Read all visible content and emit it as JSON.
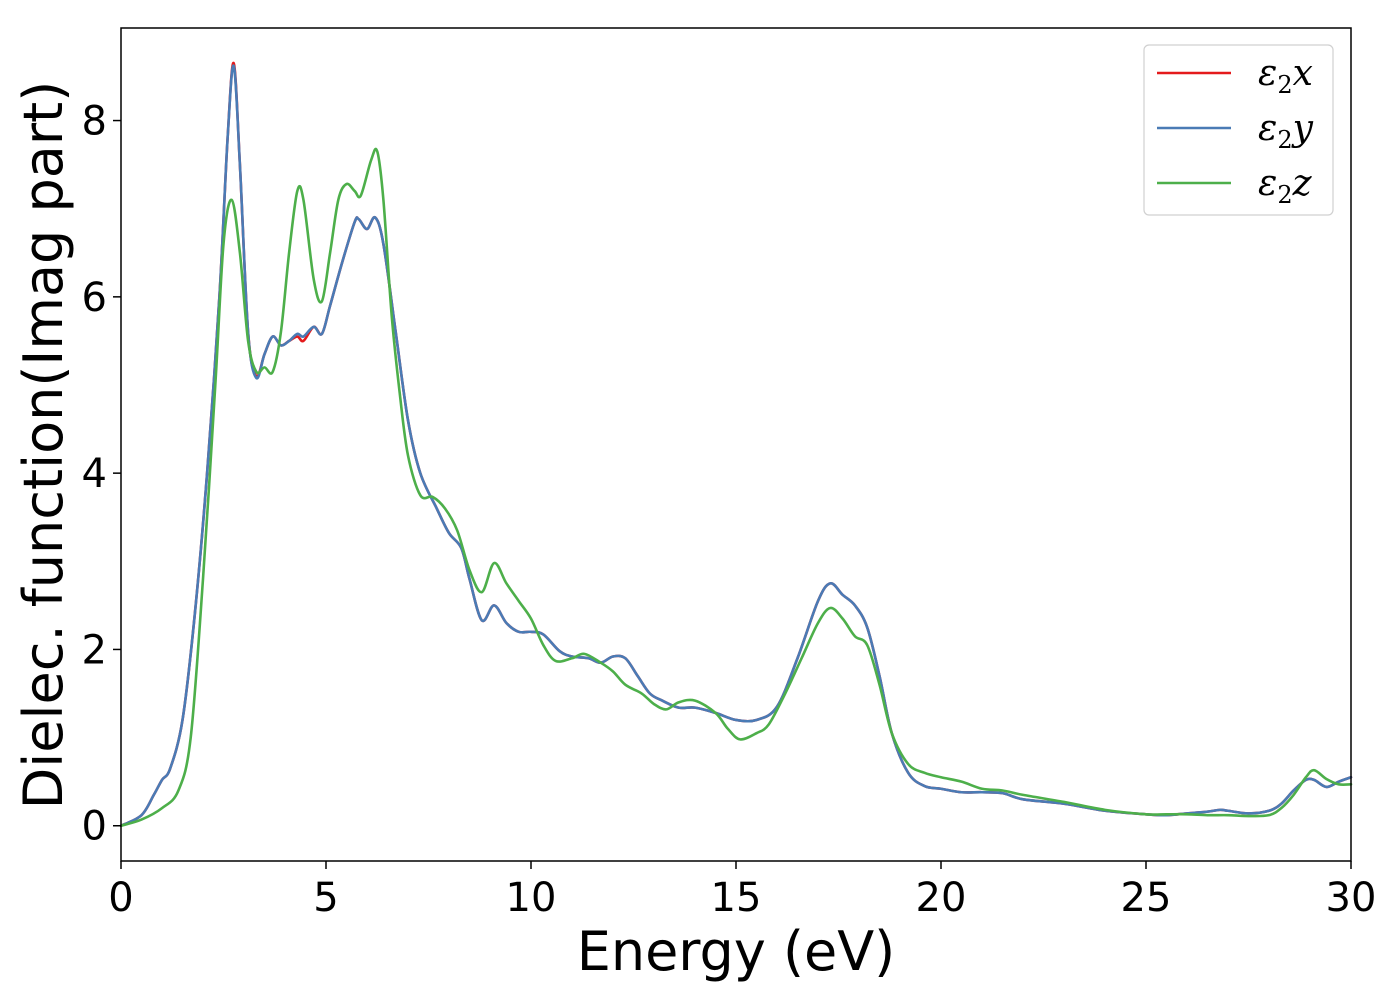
{
  "chart_data": {
    "type": "line",
    "xlabel": "Energy (eV)",
    "ylabel": "Dielec. function(Imag part)",
    "xlim": [
      0,
      30
    ],
    "ylim": [
      -0.4,
      9.05
    ],
    "xticks": [
      0,
      5,
      10,
      15,
      20,
      25,
      30
    ],
    "yticks": [
      0,
      2,
      4,
      6,
      8
    ],
    "grid": false,
    "legend_position": "top-right",
    "series": [
      {
        "name": "ε2x",
        "legend": {
          "base": "ε",
          "sub": "2",
          "var": "x"
        },
        "color": "#e41a1c",
        "points": [
          [
            0,
            0
          ],
          [
            0.5,
            0.12
          ],
          [
            0.8,
            0.35
          ],
          [
            1.0,
            0.52
          ],
          [
            1.2,
            0.65
          ],
          [
            1.5,
            1.2
          ],
          [
            1.8,
            2.4
          ],
          [
            2.1,
            4.0
          ],
          [
            2.4,
            6.0
          ],
          [
            2.6,
            7.8
          ],
          [
            2.75,
            8.65
          ],
          [
            2.9,
            7.5
          ],
          [
            3.1,
            5.6
          ],
          [
            3.3,
            5.1
          ],
          [
            3.5,
            5.35
          ],
          [
            3.7,
            5.55
          ],
          [
            3.9,
            5.45
          ],
          [
            4.1,
            5.5
          ],
          [
            4.3,
            5.55
          ],
          [
            4.45,
            5.5
          ],
          [
            4.7,
            5.66
          ],
          [
            4.9,
            5.58
          ],
          [
            5.1,
            5.9
          ],
          [
            5.4,
            6.4
          ],
          [
            5.7,
            6.85
          ],
          [
            5.8,
            6.88
          ],
          [
            6.0,
            6.77
          ],
          [
            6.2,
            6.9
          ],
          [
            6.4,
            6.6
          ],
          [
            6.7,
            5.6
          ],
          [
            7.0,
            4.6
          ],
          [
            7.3,
            4.0
          ],
          [
            7.7,
            3.6
          ],
          [
            8.0,
            3.32
          ],
          [
            8.3,
            3.15
          ],
          [
            8.5,
            2.8
          ],
          [
            8.8,
            2.33
          ],
          [
            9.1,
            2.5
          ],
          [
            9.4,
            2.3
          ],
          [
            9.7,
            2.2
          ],
          [
            10.0,
            2.2
          ],
          [
            10.3,
            2.17
          ],
          [
            10.7,
            1.98
          ],
          [
            11.0,
            1.92
          ],
          [
            11.4,
            1.9
          ],
          [
            11.7,
            1.85
          ],
          [
            12.0,
            1.92
          ],
          [
            12.3,
            1.9
          ],
          [
            12.6,
            1.7
          ],
          [
            12.9,
            1.5
          ],
          [
            13.2,
            1.42
          ],
          [
            13.6,
            1.34
          ],
          [
            14.0,
            1.34
          ],
          [
            14.5,
            1.28
          ],
          [
            15.0,
            1.2
          ],
          [
            15.5,
            1.2
          ],
          [
            16.0,
            1.35
          ],
          [
            16.5,
            1.9
          ],
          [
            17.0,
            2.55
          ],
          [
            17.3,
            2.75
          ],
          [
            17.6,
            2.62
          ],
          [
            17.9,
            2.5
          ],
          [
            18.2,
            2.25
          ],
          [
            18.5,
            1.7
          ],
          [
            18.8,
            1.05
          ],
          [
            19.2,
            0.6
          ],
          [
            19.6,
            0.45
          ],
          [
            20.0,
            0.42
          ],
          [
            20.5,
            0.38
          ],
          [
            21.0,
            0.38
          ],
          [
            21.5,
            0.37
          ],
          [
            22.0,
            0.3
          ],
          [
            23.0,
            0.25
          ],
          [
            24.0,
            0.17
          ],
          [
            25.0,
            0.13
          ],
          [
            25.5,
            0.12
          ],
          [
            26.0,
            0.14
          ],
          [
            26.5,
            0.16
          ],
          [
            26.8,
            0.18
          ],
          [
            27.0,
            0.17
          ],
          [
            27.5,
            0.14
          ],
          [
            28.0,
            0.17
          ],
          [
            28.3,
            0.25
          ],
          [
            28.6,
            0.4
          ],
          [
            28.9,
            0.52
          ],
          [
            29.1,
            0.52
          ],
          [
            29.4,
            0.44
          ],
          [
            29.7,
            0.5
          ],
          [
            30.0,
            0.55
          ]
        ]
      },
      {
        "name": "ε2y",
        "legend": {
          "base": "ε",
          "sub": "2",
          "var": "y"
        },
        "color": "#4a7bb5",
        "points": [
          [
            0,
            0
          ],
          [
            0.5,
            0.12
          ],
          [
            0.8,
            0.35
          ],
          [
            1.0,
            0.52
          ],
          [
            1.2,
            0.65
          ],
          [
            1.5,
            1.2
          ],
          [
            1.8,
            2.4
          ],
          [
            2.1,
            4.0
          ],
          [
            2.4,
            6.0
          ],
          [
            2.6,
            7.8
          ],
          [
            2.75,
            8.62
          ],
          [
            2.9,
            7.5
          ],
          [
            3.1,
            5.6
          ],
          [
            3.3,
            5.08
          ],
          [
            3.5,
            5.35
          ],
          [
            3.7,
            5.55
          ],
          [
            3.9,
            5.45
          ],
          [
            4.1,
            5.5
          ],
          [
            4.3,
            5.58
          ],
          [
            4.45,
            5.55
          ],
          [
            4.7,
            5.66
          ],
          [
            4.9,
            5.58
          ],
          [
            5.1,
            5.9
          ],
          [
            5.4,
            6.4
          ],
          [
            5.7,
            6.85
          ],
          [
            5.8,
            6.88
          ],
          [
            6.0,
            6.77
          ],
          [
            6.2,
            6.9
          ],
          [
            6.4,
            6.6
          ],
          [
            6.7,
            5.6
          ],
          [
            7.0,
            4.6
          ],
          [
            7.3,
            4.0
          ],
          [
            7.7,
            3.6
          ],
          [
            8.0,
            3.32
          ],
          [
            8.3,
            3.15
          ],
          [
            8.5,
            2.8
          ],
          [
            8.8,
            2.33
          ],
          [
            9.1,
            2.5
          ],
          [
            9.4,
            2.3
          ],
          [
            9.7,
            2.2
          ],
          [
            10.0,
            2.2
          ],
          [
            10.3,
            2.17
          ],
          [
            10.7,
            1.98
          ],
          [
            11.0,
            1.92
          ],
          [
            11.4,
            1.9
          ],
          [
            11.7,
            1.85
          ],
          [
            12.0,
            1.92
          ],
          [
            12.3,
            1.9
          ],
          [
            12.6,
            1.7
          ],
          [
            12.9,
            1.5
          ],
          [
            13.2,
            1.42
          ],
          [
            13.6,
            1.34
          ],
          [
            14.0,
            1.34
          ],
          [
            14.5,
            1.28
          ],
          [
            15.0,
            1.2
          ],
          [
            15.5,
            1.2
          ],
          [
            16.0,
            1.35
          ],
          [
            16.5,
            1.9
          ],
          [
            17.0,
            2.55
          ],
          [
            17.3,
            2.75
          ],
          [
            17.6,
            2.62
          ],
          [
            17.9,
            2.5
          ],
          [
            18.2,
            2.25
          ],
          [
            18.5,
            1.7
          ],
          [
            18.8,
            1.05
          ],
          [
            19.2,
            0.6
          ],
          [
            19.6,
            0.45
          ],
          [
            20.0,
            0.42
          ],
          [
            20.5,
            0.38
          ],
          [
            21.0,
            0.38
          ],
          [
            21.5,
            0.37
          ],
          [
            22.0,
            0.3
          ],
          [
            23.0,
            0.25
          ],
          [
            24.0,
            0.17
          ],
          [
            25.0,
            0.13
          ],
          [
            25.5,
            0.12
          ],
          [
            26.0,
            0.14
          ],
          [
            26.5,
            0.16
          ],
          [
            26.8,
            0.18
          ],
          [
            27.0,
            0.17
          ],
          [
            27.5,
            0.14
          ],
          [
            28.0,
            0.17
          ],
          [
            28.3,
            0.25
          ],
          [
            28.6,
            0.4
          ],
          [
            28.9,
            0.52
          ],
          [
            29.1,
            0.52
          ],
          [
            29.4,
            0.44
          ],
          [
            29.7,
            0.5
          ],
          [
            30.0,
            0.55
          ]
        ]
      },
      {
        "name": "ε2z",
        "legend": {
          "base": "ε",
          "sub": "2",
          "var": "z"
        },
        "color": "#4daf4a",
        "points": [
          [
            0,
            0
          ],
          [
            0.5,
            0.07
          ],
          [
            1.0,
            0.2
          ],
          [
            1.4,
            0.4
          ],
          [
            1.7,
            1.0
          ],
          [
            2.0,
            2.8
          ],
          [
            2.3,
            5.0
          ],
          [
            2.5,
            6.6
          ],
          [
            2.7,
            7.1
          ],
          [
            2.9,
            6.5
          ],
          [
            3.1,
            5.5
          ],
          [
            3.3,
            5.15
          ],
          [
            3.5,
            5.2
          ],
          [
            3.7,
            5.15
          ],
          [
            3.9,
            5.6
          ],
          [
            4.1,
            6.5
          ],
          [
            4.3,
            7.2
          ],
          [
            4.45,
            7.1
          ],
          [
            4.7,
            6.2
          ],
          [
            4.9,
            5.95
          ],
          [
            5.1,
            6.5
          ],
          [
            5.3,
            7.1
          ],
          [
            5.5,
            7.28
          ],
          [
            5.7,
            7.2
          ],
          [
            5.85,
            7.15
          ],
          [
            6.1,
            7.55
          ],
          [
            6.25,
            7.65
          ],
          [
            6.4,
            7.1
          ],
          [
            6.6,
            5.8
          ],
          [
            6.8,
            4.9
          ],
          [
            7.0,
            4.2
          ],
          [
            7.3,
            3.75
          ],
          [
            7.6,
            3.73
          ],
          [
            7.9,
            3.6
          ],
          [
            8.2,
            3.35
          ],
          [
            8.5,
            2.9
          ],
          [
            8.8,
            2.65
          ],
          [
            9.1,
            2.98
          ],
          [
            9.4,
            2.75
          ],
          [
            9.7,
            2.55
          ],
          [
            10.0,
            2.35
          ],
          [
            10.3,
            2.05
          ],
          [
            10.6,
            1.87
          ],
          [
            11.0,
            1.9
          ],
          [
            11.3,
            1.95
          ],
          [
            11.7,
            1.85
          ],
          [
            12.0,
            1.75
          ],
          [
            12.3,
            1.6
          ],
          [
            12.7,
            1.5
          ],
          [
            13.0,
            1.38
          ],
          [
            13.3,
            1.32
          ],
          [
            13.6,
            1.4
          ],
          [
            14.0,
            1.42
          ],
          [
            14.5,
            1.28
          ],
          [
            14.8,
            1.1
          ],
          [
            15.1,
            0.98
          ],
          [
            15.5,
            1.05
          ],
          [
            15.8,
            1.15
          ],
          [
            16.2,
            1.5
          ],
          [
            16.6,
            1.9
          ],
          [
            17.0,
            2.3
          ],
          [
            17.3,
            2.47
          ],
          [
            17.6,
            2.35
          ],
          [
            17.9,
            2.15
          ],
          [
            18.2,
            2.05
          ],
          [
            18.5,
            1.6
          ],
          [
            18.8,
            1.05
          ],
          [
            19.2,
            0.7
          ],
          [
            19.6,
            0.6
          ],
          [
            20.0,
            0.55
          ],
          [
            20.5,
            0.5
          ],
          [
            21.0,
            0.42
          ],
          [
            21.5,
            0.4
          ],
          [
            22.0,
            0.35
          ],
          [
            23.0,
            0.27
          ],
          [
            24.0,
            0.18
          ],
          [
            25.0,
            0.13
          ],
          [
            25.5,
            0.13
          ],
          [
            26.0,
            0.13
          ],
          [
            26.5,
            0.12
          ],
          [
            27.0,
            0.12
          ],
          [
            27.5,
            0.11
          ],
          [
            28.0,
            0.12
          ],
          [
            28.3,
            0.2
          ],
          [
            28.6,
            0.35
          ],
          [
            28.9,
            0.55
          ],
          [
            29.1,
            0.63
          ],
          [
            29.4,
            0.53
          ],
          [
            29.7,
            0.47
          ],
          [
            30.0,
            0.47
          ]
        ]
      }
    ]
  }
}
